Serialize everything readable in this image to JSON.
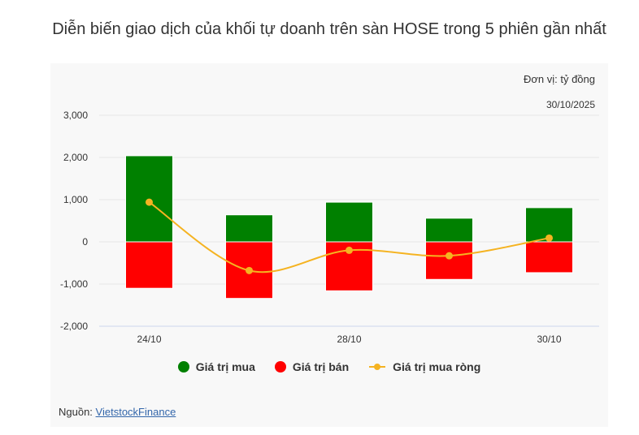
{
  "title": "Diễn biến giao dịch của khối tự doanh trên sàn HOSE trong 5 phiên gần nhất",
  "unit": "Đơn vị: tỷ đồng",
  "date": "30/10/2025",
  "source_label": "Nguồn:",
  "source_link": "VietstockFinance",
  "chart_data": {
    "type": "bar",
    "categories": [
      "24/10",
      "",
      "28/10",
      "",
      "30/10"
    ],
    "ylim": [
      -2000,
      3000
    ],
    "yticks": [
      3000,
      2000,
      1000,
      0,
      -1000,
      -2000
    ],
    "ytick_labels": [
      "3,000",
      "2,000",
      "1,000",
      "0",
      "-1,000",
      "-2,000"
    ],
    "grid": true,
    "legend_position": "bottom",
    "series": [
      {
        "name": "Giá trị mua",
        "type": "bar",
        "color": "#008000",
        "values": [
          2040,
          640,
          940,
          560,
          810
        ]
      },
      {
        "name": "Giá trị bán",
        "type": "bar",
        "color": "#ff0000",
        "values": [
          -1100,
          -1340,
          -1160,
          -890,
          -730
        ]
      },
      {
        "name": "Giá trị mua ròng",
        "type": "line",
        "color": "#f5b321",
        "values": [
          940,
          -680,
          -200,
          -330,
          90
        ]
      }
    ]
  }
}
